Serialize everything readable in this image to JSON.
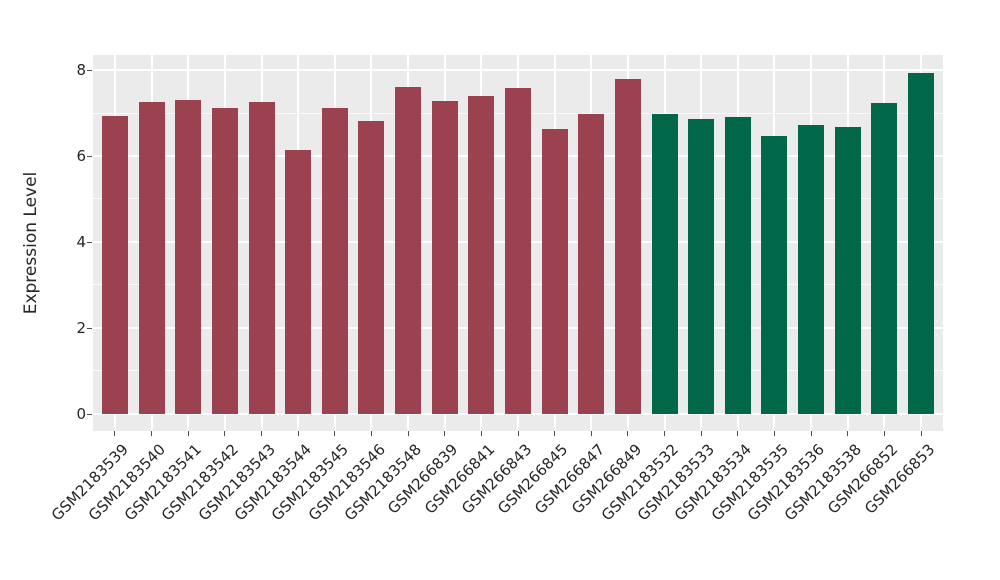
{
  "chart_data": {
    "type": "bar",
    "title": "",
    "xlabel": "",
    "ylabel": "Expression Level",
    "ylim": [
      -0.4,
      8.35
    ],
    "yticks": [
      0,
      2,
      4,
      6,
      8
    ],
    "yticks_minor": [
      1,
      3,
      5,
      7
    ],
    "grid": true,
    "legend": "none",
    "panel_background": "#EBEBEB",
    "gridline_color": "#FFFFFF",
    "axis_text_color": "#262626",
    "group_colors": {
      "group1": "#9C4150",
      "group2": "#006849"
    },
    "bars": [
      {
        "label": "GSM2183539",
        "value": 6.92,
        "group": "group1"
      },
      {
        "label": "GSM2183540",
        "value": 7.26,
        "group": "group1"
      },
      {
        "label": "GSM2183541",
        "value": 7.31,
        "group": "group1"
      },
      {
        "label": "GSM2183542",
        "value": 7.12,
        "group": "group1"
      },
      {
        "label": "GSM2183543",
        "value": 7.26,
        "group": "group1"
      },
      {
        "label": "GSM2183544",
        "value": 6.15,
        "group": "group1"
      },
      {
        "label": "GSM2183545",
        "value": 7.12,
        "group": "group1"
      },
      {
        "label": "GSM2183546",
        "value": 6.82,
        "group": "group1"
      },
      {
        "label": "GSM2183548",
        "value": 7.6,
        "group": "group1"
      },
      {
        "label": "GSM266839",
        "value": 7.29,
        "group": "group1"
      },
      {
        "label": "GSM266841",
        "value": 7.4,
        "group": "group1"
      },
      {
        "label": "GSM266843",
        "value": 7.58,
        "group": "group1"
      },
      {
        "label": "GSM266845",
        "value": 6.63,
        "group": "group1"
      },
      {
        "label": "GSM266847",
        "value": 6.98,
        "group": "group1"
      },
      {
        "label": "GSM266849",
        "value": 7.8,
        "group": "group1"
      },
      {
        "label": "GSM2183532",
        "value": 6.98,
        "group": "group2"
      },
      {
        "label": "GSM2183533",
        "value": 6.86,
        "group": "group2"
      },
      {
        "label": "GSM2183534",
        "value": 6.9,
        "group": "group2"
      },
      {
        "label": "GSM2183535",
        "value": 6.46,
        "group": "group2"
      },
      {
        "label": "GSM2183536",
        "value": 6.73,
        "group": "group2"
      },
      {
        "label": "GSM2183538",
        "value": 6.68,
        "group": "group2"
      },
      {
        "label": "GSM266852",
        "value": 7.24,
        "group": "group2"
      },
      {
        "label": "GSM266853",
        "value": 7.93,
        "group": "group2"
      }
    ]
  }
}
